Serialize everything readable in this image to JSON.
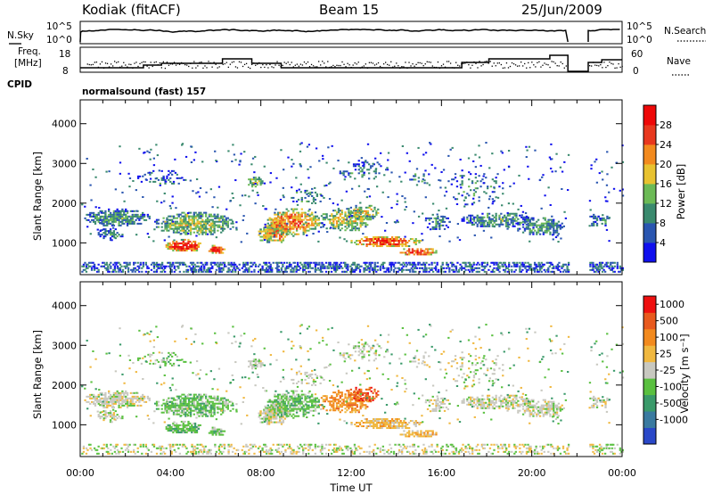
{
  "header": {
    "station": "Kodiak (fitACF)",
    "beam": "Beam 15",
    "date": "25/Jun/2009"
  },
  "top_panels": {
    "nsky_label": "N.Sky",
    "nsearch_label": "N.Search",
    "freq_label_1": "Freq.",
    "freq_label_2": "[MHz]",
    "nave_label": "Nave",
    "cpid_label": "CPID",
    "cpid_text": "normalsound (fast) 157",
    "noise_ticks": [
      "10^5",
      "10^0"
    ],
    "freq_ticks": [
      "18",
      "8"
    ],
    "nave_ticks": [
      "60",
      "0"
    ]
  },
  "chart_data": [
    {
      "type": "heatmap",
      "name": "power-panel",
      "ylabel": "Slant Range [km]",
      "yticks": [
        1000,
        2000,
        3000,
        4000
      ],
      "ylim": [
        200,
        4600
      ],
      "xlim": [
        0,
        24
      ],
      "colorbar": {
        "label": "Power [dB]",
        "ticks": [
          "4",
          "8",
          "12",
          "16",
          "20",
          "24",
          "28"
        ],
        "colors": [
          "#1010ee",
          "#2a56b0",
          "#3a8a6e",
          "#6cba56",
          "#e8c230",
          "#f28a1e",
          "#e8381e",
          "#ee0808"
        ]
      }
    },
    {
      "type": "heatmap",
      "name": "velocity-panel",
      "ylabel": "Slant Range [km]",
      "yticks": [
        1000,
        2000,
        3000,
        4000
      ],
      "ylim": [
        200,
        4600
      ],
      "xlim": [
        0,
        24
      ],
      "xlabel": "Time UT",
      "xticks": [
        "00:00",
        "04:00",
        "08:00",
        "12:00",
        "16:00",
        "20:00",
        "00:00"
      ],
      "colorbar": {
        "label": "Velocity  [m s⁻¹]",
        "ticks": [
          "1000",
          "500",
          "100",
          "25",
          "-25",
          "-100",
          "-500",
          "-1000"
        ],
        "colors": [
          "#2a48c8",
          "#3a7aa0",
          "#3a9a6a",
          "#5ac040",
          "#c8c8c0",
          "#f0b840",
          "#f28a1e",
          "#e85a1e",
          "#ee1010"
        ]
      }
    }
  ]
}
